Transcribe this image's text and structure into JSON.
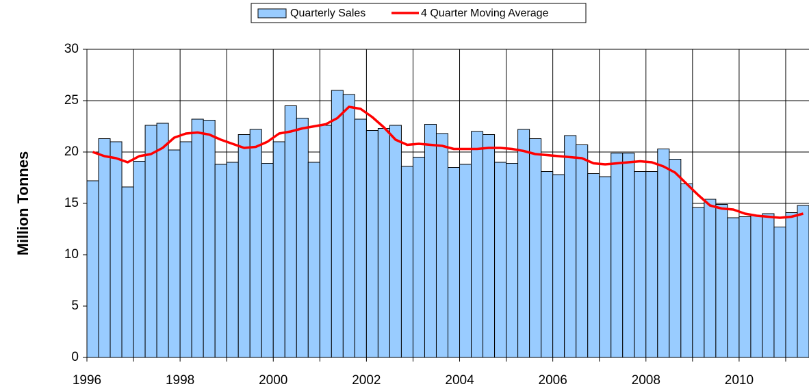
{
  "chart_data": {
    "type": "bar",
    "y_label": "Million Tonnes",
    "categories": [
      "1996",
      null,
      null,
      null,
      null,
      null,
      null,
      null,
      "1998",
      null,
      null,
      null,
      null,
      null,
      null,
      null,
      "2000",
      null,
      null,
      null,
      null,
      null,
      null,
      null,
      "2002",
      null,
      null,
      null,
      null,
      null,
      null,
      null,
      "2004",
      null,
      null,
      null,
      null,
      null,
      null,
      null,
      "2006",
      null,
      null,
      null,
      null,
      null,
      null,
      null,
      "2008",
      null,
      null,
      null,
      null,
      null,
      null,
      null,
      "2010",
      null,
      null,
      null,
      null,
      null
    ],
    "series": [
      {
        "name": "Quarterly Sales",
        "color": "#99ccff",
        "values": [
          17.2,
          21.3,
          21.0,
          16.6,
          19.1,
          22.6,
          22.8,
          20.2,
          21.0,
          23.2,
          23.1,
          18.8,
          19.0,
          21.7,
          22.2,
          18.9,
          21.0,
          24.5,
          23.3,
          19.0,
          22.6,
          26.0,
          25.6,
          23.2,
          22.1,
          22.3,
          22.6,
          18.6,
          19.5,
          22.7,
          21.8,
          18.5,
          18.8,
          22.0,
          21.7,
          19.0,
          18.9,
          22.2,
          21.3,
          18.1,
          17.8,
          21.6,
          20.7,
          17.9,
          17.6,
          19.9,
          19.9,
          18.1,
          18.1,
          20.3,
          19.3,
          16.9,
          14.6,
          15.4,
          14.9,
          13.6,
          13.7,
          13.8,
          14.0,
          12.7,
          14.1,
          14.8
        ]
      },
      {
        "name": "4 Quarter Moving Average",
        "color": "#ff0000",
        "values": [
          20.0,
          19.6,
          19.4,
          19.0,
          19.6,
          19.8,
          20.4,
          21.4,
          21.8,
          21.9,
          21.7,
          21.2,
          20.8,
          20.4,
          20.5,
          21.0,
          21.8,
          22.0,
          22.3,
          22.5,
          22.7,
          23.3,
          24.4,
          24.2,
          23.4,
          22.4,
          21.2,
          20.7,
          20.8,
          20.7,
          20.6,
          20.3,
          20.3,
          20.3,
          20.4,
          20.4,
          20.3,
          20.1,
          19.8,
          19.7,
          19.6,
          19.5,
          19.4,
          18.9,
          18.8,
          18.9,
          19.0,
          19.1,
          19.0,
          18.6,
          18.0,
          16.9,
          15.8,
          14.8,
          14.5,
          14.4,
          14.0,
          13.8,
          13.7,
          13.6,
          13.7,
          14.0
        ]
      }
    ],
    "ylim": [
      0,
      30
    ],
    "yticks": [
      0,
      5,
      10,
      15,
      20,
      25,
      30
    ],
    "grid": true
  }
}
